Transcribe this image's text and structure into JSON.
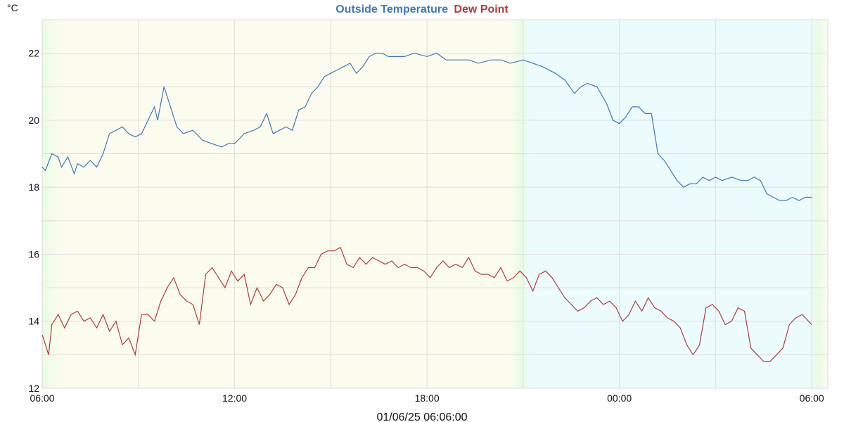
{
  "chart_data": {
    "type": "line",
    "title_parts": [
      "Outside Temperature",
      "Dew Point"
    ],
    "unit_label": "°C",
    "footer": "01/06/25 06:06:00",
    "x_range_hours": [
      6,
      30.5
    ],
    "ylim": [
      12,
      23
    ],
    "y_ticks": [
      12,
      14,
      16,
      18,
      20,
      22
    ],
    "x_ticks": [
      {
        "h": 6,
        "label": "06:00"
      },
      {
        "h": 12,
        "label": "12:00"
      },
      {
        "h": 18,
        "label": "18:00"
      },
      {
        "h": 24,
        "label": "00:00"
      },
      {
        "h": 30,
        "label": "06:00"
      }
    ],
    "day_period_hours": [
      {
        "from": 6,
        "to": 21,
        "period": "day"
      },
      {
        "from": 21,
        "to": 30,
        "period": "night"
      },
      {
        "from": 30,
        "to": 30.5,
        "period": "day"
      }
    ],
    "colors": {
      "temperature": "#3d78b8",
      "dewpoint": "#b23a3a",
      "day_band": "#fcfcee",
      "night_band": "#ecfbfb",
      "twilight": "#eafbe4",
      "grid": "#dddddd"
    },
    "series": [
      {
        "name": "Outside Temperature",
        "x": [
          6.0,
          6.1,
          6.3,
          6.5,
          6.6,
          6.8,
          7.0,
          7.1,
          7.3,
          7.5,
          7.7,
          7.9,
          8.1,
          8.3,
          8.5,
          8.7,
          8.9,
          9.1,
          9.3,
          9.5,
          9.6,
          9.8,
          10.0,
          10.2,
          10.4,
          10.7,
          11.0,
          11.3,
          11.6,
          11.8,
          12.0,
          12.3,
          12.6,
          12.8,
          13.0,
          13.2,
          13.4,
          13.6,
          13.8,
          14.0,
          14.2,
          14.4,
          14.6,
          14.8,
          15.0,
          15.2,
          15.4,
          15.6,
          15.8,
          16.0,
          16.2,
          16.4,
          16.6,
          16.8,
          17.0,
          17.3,
          17.6,
          18.0,
          18.3,
          18.6,
          19.0,
          19.3,
          19.6,
          20.0,
          20.3,
          20.6,
          21.0,
          21.3,
          21.6,
          22.0,
          22.3,
          22.6,
          22.8,
          23.0,
          23.3,
          23.6,
          23.8,
          24.0,
          24.2,
          24.4,
          24.6,
          24.8,
          25.0,
          25.2,
          25.4,
          25.6,
          25.8,
          26.0,
          26.2,
          26.4,
          26.6,
          26.8,
          27.0,
          27.2,
          27.5,
          27.8,
          28.0,
          28.2,
          28.4,
          28.6,
          28.8,
          29.0,
          29.2,
          29.4,
          29.6,
          29.8,
          30.0
        ],
        "values": [
          18.6,
          18.5,
          19.0,
          18.9,
          18.6,
          18.9,
          18.4,
          18.7,
          18.6,
          18.8,
          18.6,
          19.0,
          19.6,
          19.7,
          19.8,
          19.6,
          19.5,
          19.6,
          20.0,
          20.4,
          20.0,
          21.0,
          20.4,
          19.8,
          19.6,
          19.7,
          19.4,
          19.3,
          19.2,
          19.3,
          19.3,
          19.6,
          19.7,
          19.8,
          20.2,
          19.6,
          19.7,
          19.8,
          19.7,
          20.3,
          20.4,
          20.8,
          21.0,
          21.3,
          21.4,
          21.5,
          21.6,
          21.7,
          21.4,
          21.6,
          21.9,
          22.0,
          22.0,
          21.9,
          21.9,
          21.9,
          22.0,
          21.9,
          22.0,
          21.8,
          21.8,
          21.8,
          21.7,
          21.8,
          21.8,
          21.7,
          21.8,
          21.7,
          21.6,
          21.4,
          21.2,
          20.8,
          21.0,
          21.1,
          21.0,
          20.5,
          20.0,
          19.9,
          20.1,
          20.4,
          20.4,
          20.2,
          20.2,
          19.0,
          18.8,
          18.5,
          18.2,
          18.0,
          18.1,
          18.1,
          18.3,
          18.2,
          18.3,
          18.2,
          18.3,
          18.2,
          18.2,
          18.3,
          18.2,
          17.8,
          17.7,
          17.6,
          17.6,
          17.7,
          17.6,
          17.7,
          17.7
        ]
      },
      {
        "name": "Dew Point",
        "x": [
          6.0,
          6.1,
          6.2,
          6.3,
          6.5,
          6.7,
          6.9,
          7.1,
          7.3,
          7.5,
          7.7,
          7.9,
          8.1,
          8.3,
          8.5,
          8.7,
          8.9,
          9.1,
          9.3,
          9.5,
          9.7,
          9.9,
          10.1,
          10.3,
          10.5,
          10.7,
          10.9,
          11.1,
          11.3,
          11.5,
          11.7,
          11.9,
          12.1,
          12.3,
          12.5,
          12.7,
          12.9,
          13.1,
          13.3,
          13.5,
          13.7,
          13.9,
          14.1,
          14.3,
          14.5,
          14.7,
          14.9,
          15.1,
          15.3,
          15.5,
          15.7,
          15.9,
          16.1,
          16.3,
          16.5,
          16.7,
          16.9,
          17.1,
          17.3,
          17.5,
          17.7,
          17.9,
          18.1,
          18.3,
          18.5,
          18.7,
          18.9,
          19.1,
          19.3,
          19.5,
          19.7,
          19.9,
          20.1,
          20.3,
          20.5,
          20.7,
          20.9,
          21.1,
          21.3,
          21.5,
          21.7,
          21.9,
          22.1,
          22.3,
          22.5,
          22.7,
          22.9,
          23.1,
          23.3,
          23.5,
          23.7,
          23.9,
          24.1,
          24.3,
          24.5,
          24.7,
          24.9,
          25.1,
          25.3,
          25.5,
          25.7,
          25.9,
          26.1,
          26.3,
          26.5,
          26.7,
          26.9,
          27.1,
          27.3,
          27.5,
          27.7,
          27.9,
          28.1,
          28.3,
          28.5,
          28.7,
          28.9,
          29.1,
          29.3,
          29.5,
          29.7,
          29.9,
          30.0
        ],
        "values": [
          13.6,
          13.3,
          13.0,
          13.9,
          14.2,
          13.8,
          14.2,
          14.3,
          14.0,
          14.1,
          13.8,
          14.2,
          13.7,
          14.0,
          13.3,
          13.5,
          13.0,
          14.2,
          14.2,
          14.0,
          14.6,
          15.0,
          15.3,
          14.8,
          14.6,
          14.5,
          13.9,
          15.4,
          15.6,
          15.3,
          15.0,
          15.5,
          15.2,
          15.4,
          14.5,
          15.0,
          14.6,
          14.8,
          15.1,
          15.0,
          14.5,
          14.8,
          15.3,
          15.6,
          15.6,
          16.0,
          16.1,
          16.1,
          16.2,
          15.7,
          15.6,
          15.9,
          15.7,
          15.9,
          15.8,
          15.7,
          15.8,
          15.6,
          15.7,
          15.6,
          15.6,
          15.5,
          15.3,
          15.6,
          15.8,
          15.6,
          15.7,
          15.6,
          15.9,
          15.5,
          15.4,
          15.4,
          15.3,
          15.6,
          15.2,
          15.3,
          15.5,
          15.3,
          14.9,
          15.4,
          15.5,
          15.3,
          15.0,
          14.7,
          14.5,
          14.3,
          14.4,
          14.6,
          14.7,
          14.5,
          14.6,
          14.4,
          14.0,
          14.2,
          14.6,
          14.3,
          14.7,
          14.4,
          14.3,
          14.1,
          14.0,
          13.8,
          13.3,
          13.0,
          13.3,
          14.4,
          14.5,
          14.3,
          13.9,
          14.0,
          14.4,
          14.3,
          13.2,
          13.0,
          12.8,
          12.8,
          13.0,
          13.2,
          13.9,
          14.1,
          14.2,
          14.0,
          13.9
        ]
      }
    ]
  }
}
